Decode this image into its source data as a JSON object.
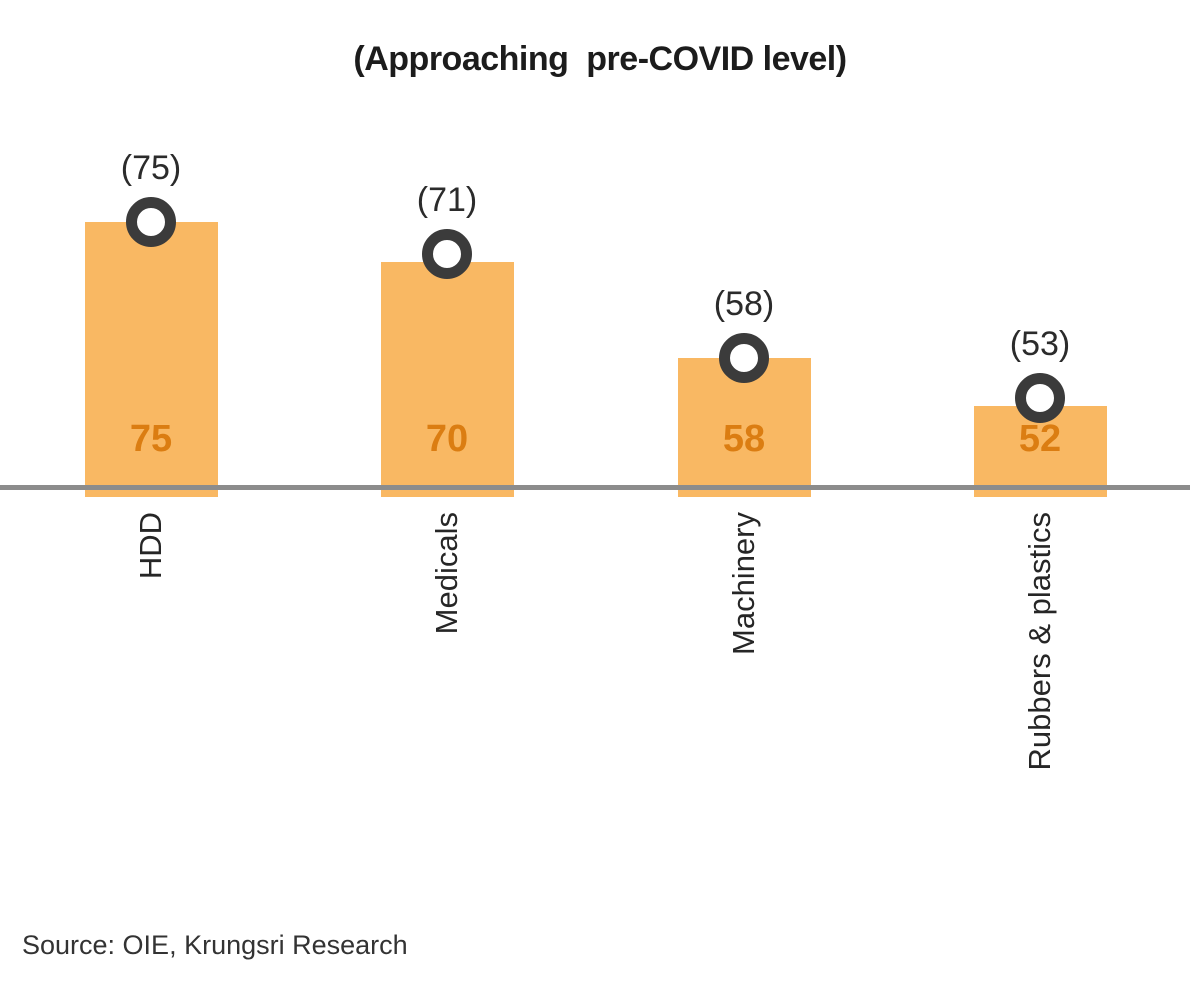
{
  "source_note": "Source: OIE, Krungsri Research",
  "colors": {
    "bar_fill": "#f9b863",
    "bar_value_label": "#db7d12",
    "marker_ring": "#3b3b3b",
    "marker_fill": "#ffffff",
    "axis_line": "#8c8c8c",
    "title_text": "#1c1c1c",
    "category_text": "#262626"
  },
  "chart_data": {
    "type": "bar",
    "title": "(Approaching  pre-COVID level)",
    "xlabel": "",
    "ylabel": "",
    "categories": [
      "HDD",
      "Medicals",
      "Machinery",
      "Rubbers & plastics"
    ],
    "series": [
      {
        "name": "bar-values",
        "type": "bar",
        "values": [
          75,
          70,
          58,
          52
        ]
      },
      {
        "name": "circle-markers",
        "type": "scatter",
        "values": [
          75,
          71,
          58,
          53
        ]
      }
    ],
    "bar_value_labels": [
      "75",
      "70",
      "58",
      "52"
    ],
    "marker_value_labels": [
      "(75)",
      "(71)",
      "(58)",
      "(53)"
    ],
    "ylim": [
      41.5,
      97.5
    ],
    "grid": false,
    "legend": false,
    "category_labels_rotated_degrees": -90
  }
}
